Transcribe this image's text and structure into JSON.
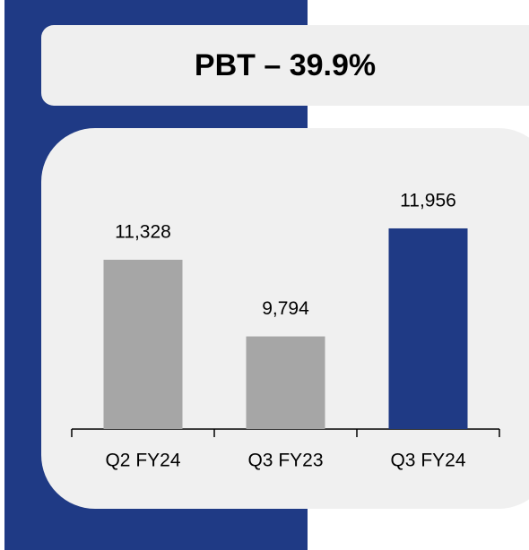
{
  "chart_data": {
    "type": "bar",
    "title": "PBT – 39.9%",
    "categories": [
      "Q2 FY24",
      "Q3 FY23",
      "Q3 FY24"
    ],
    "values": [
      11328,
      9794,
      11956
    ],
    "value_labels": [
      "11,328",
      "9,794",
      "11,956"
    ],
    "colors": [
      "#a6a6a6",
      "#a6a6a6",
      "#1f3a85"
    ],
    "ylim": [
      7940,
      13300
    ]
  }
}
